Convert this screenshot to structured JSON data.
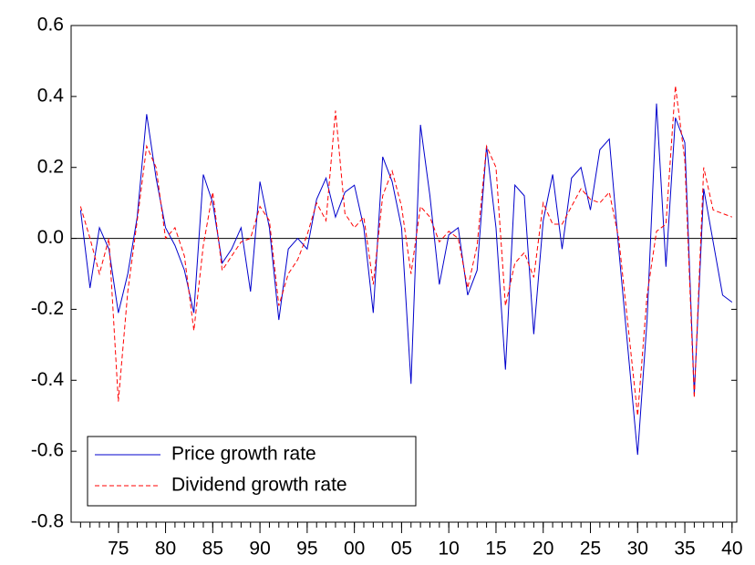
{
  "chart_data": {
    "type": "line",
    "x": [
      1971,
      1972,
      1973,
      1974,
      1975,
      1976,
      1977,
      1978,
      1979,
      1980,
      1981,
      1982,
      1983,
      1984,
      1985,
      1986,
      1987,
      1988,
      1989,
      1990,
      1991,
      1992,
      1993,
      1994,
      1995,
      1996,
      1997,
      1998,
      1999,
      2000,
      2001,
      2002,
      2003,
      2004,
      2005,
      2006,
      2007,
      2008,
      2009,
      2010,
      2011,
      2012,
      2013,
      2014,
      2015,
      2016,
      2017,
      2018,
      2019,
      2020,
      2021,
      2022,
      2023,
      2024,
      2025,
      2026,
      2027,
      2028,
      2029,
      2030,
      2031,
      2032,
      2033,
      2034,
      2035,
      2036,
      2037,
      2038,
      2039,
      2040
    ],
    "series": [
      {
        "name": "Price growth rate",
        "color": "#0000cc",
        "dash": "solid",
        "values": [
          0.08,
          -0.14,
          0.03,
          -0.03,
          -0.21,
          -0.1,
          0.06,
          0.35,
          0.17,
          0.03,
          -0.02,
          -0.09,
          -0.21,
          0.18,
          0.1,
          -0.07,
          -0.03,
          0.03,
          -0.15,
          0.16,
          0.03,
          -0.23,
          -0.03,
          0.0,
          -0.03,
          0.11,
          0.17,
          0.06,
          0.13,
          0.15,
          0.03,
          -0.21,
          0.23,
          0.16,
          0.03,
          -0.41,
          0.32,
          0.12,
          -0.13,
          0.01,
          0.03,
          -0.16,
          -0.09,
          0.26,
          0.03,
          -0.37,
          0.15,
          0.12,
          -0.27,
          0.05,
          0.18,
          -0.03,
          0.17,
          0.2,
          0.08,
          0.25,
          0.28,
          -0.03,
          -0.32,
          -0.61,
          -0.23,
          0.38,
          -0.08,
          0.34,
          0.27,
          -0.44,
          0.14,
          -0.01,
          -0.16,
          -0.18
        ]
      },
      {
        "name": "Dividend growth rate",
        "color": "#ff0000",
        "dash": "dashed",
        "values": [
          0.09,
          0.0,
          -0.1,
          0.0,
          -0.46,
          -0.15,
          0.05,
          0.26,
          0.2,
          0.0,
          0.03,
          -0.05,
          -0.26,
          -0.02,
          0.13,
          -0.09,
          -0.05,
          -0.01,
          0.0,
          0.09,
          0.05,
          -0.19,
          -0.1,
          -0.06,
          0.01,
          0.1,
          0.05,
          0.36,
          0.07,
          0.03,
          0.06,
          -0.13,
          0.12,
          0.19,
          0.09,
          -0.1,
          0.09,
          0.06,
          -0.01,
          0.02,
          0.0,
          -0.14,
          -0.02,
          0.26,
          0.2,
          -0.19,
          -0.07,
          -0.04,
          -0.11,
          0.1,
          0.04,
          0.04,
          0.09,
          0.14,
          0.11,
          0.1,
          0.13,
          0.0,
          -0.25,
          -0.5,
          -0.16,
          0.02,
          0.04,
          0.43,
          0.22,
          -0.45,
          0.2,
          0.08,
          0.07,
          0.06
        ]
      }
    ],
    "xlim": [
      1970,
      2040.5
    ],
    "xticks": [
      {
        "value": 1975,
        "label": "75"
      },
      {
        "value": 1980,
        "label": "80"
      },
      {
        "value": 1985,
        "label": "85"
      },
      {
        "value": 1990,
        "label": "90"
      },
      {
        "value": 1995,
        "label": "95"
      },
      {
        "value": 2000,
        "label": "00"
      },
      {
        "value": 2005,
        "label": "05"
      },
      {
        "value": 2010,
        "label": "10"
      },
      {
        "value": 2015,
        "label": "15"
      },
      {
        "value": 2020,
        "label": "20"
      },
      {
        "value": 2025,
        "label": "25"
      },
      {
        "value": 2030,
        "label": "30"
      },
      {
        "value": 2035,
        "label": "35"
      },
      {
        "value": 2040,
        "label": "40"
      }
    ],
    "ylim": [
      -0.8,
      0.6
    ],
    "yticks": [
      -0.8,
      -0.6,
      -0.4,
      -0.2,
      {
        "value": 0,
        "label": "0.0"
      },
      0.2,
      0.4,
      0.6
    ],
    "legend": "lower left"
  }
}
